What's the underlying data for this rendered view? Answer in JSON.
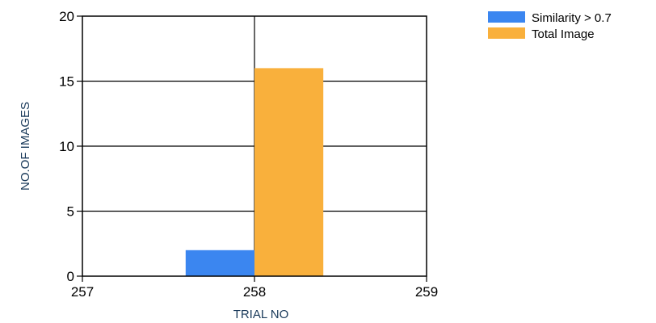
{
  "chart_data": {
    "type": "bar",
    "x": [
      258
    ],
    "series": [
      {
        "name": "Similarity > 0.7",
        "values": [
          2
        ],
        "color": "#3b86f0"
      },
      {
        "name": "Total Image",
        "values": [
          16
        ],
        "color": "#f9b03c"
      }
    ],
    "xlabel": "TRIAL NO",
    "ylabel": "NO.OF IMAGES",
    "xlim": [
      257,
      259
    ],
    "ylim": [
      0,
      20
    ],
    "xticks": [
      "257",
      "258",
      "259"
    ],
    "yticks": [
      "0",
      "5",
      "10",
      "15",
      "20"
    ],
    "grid": true,
    "legend_position": "top-right"
  }
}
